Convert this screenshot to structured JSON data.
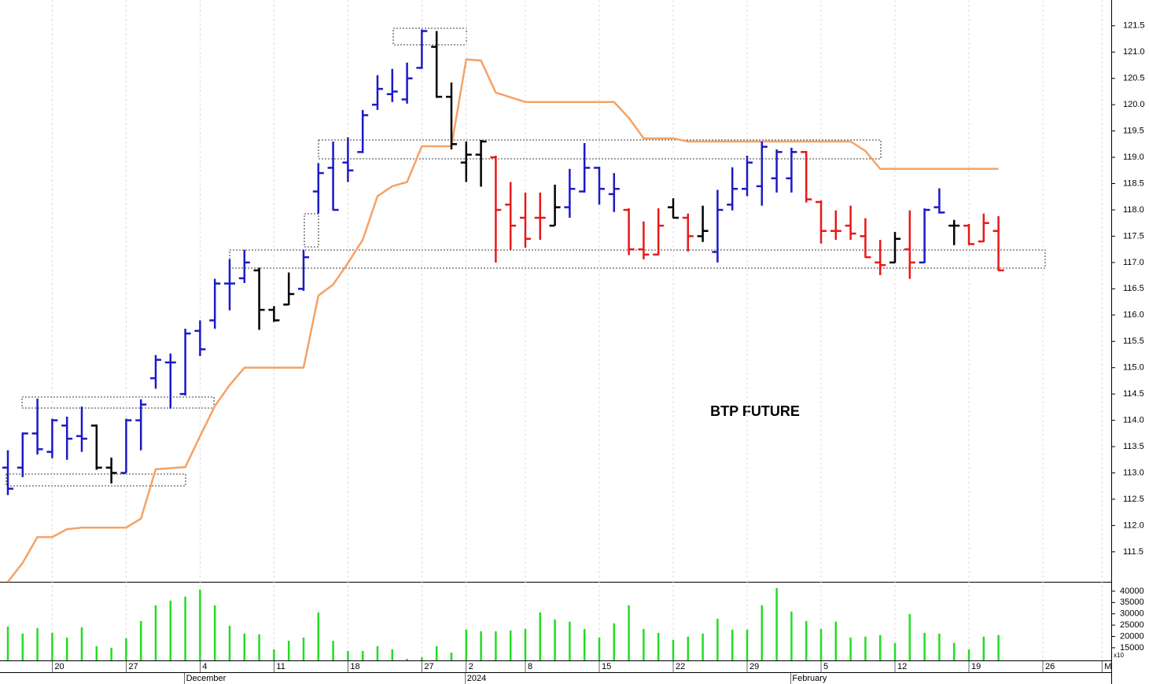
{
  "chart_data": [
    {
      "type": "ohlc",
      "annotation": "BTP FUTURE",
      "categories": [
        null,
        null,
        null,
        "20",
        null,
        null,
        null,
        null,
        "27",
        null,
        null,
        null,
        null,
        "4",
        null,
        null,
        null,
        null,
        "11",
        null,
        null,
        null,
        null,
        "18",
        null,
        null,
        null,
        null,
        "27",
        null,
        null,
        "2",
        null,
        null,
        null,
        "8",
        null,
        null,
        null,
        null,
        "15",
        null,
        null,
        null,
        null,
        "22",
        null,
        null,
        null,
        null,
        "29",
        null,
        null,
        null,
        null,
        "5",
        null,
        null,
        null,
        null,
        "12",
        null,
        null,
        null,
        null,
        "19",
        null,
        null,
        null,
        null,
        "26",
        null,
        null,
        null,
        "M"
      ],
      "month_labels": [
        null,
        null,
        null,
        null,
        null,
        null,
        null,
        null,
        null,
        null,
        null,
        null,
        "December",
        null,
        null,
        null,
        null,
        null,
        null,
        null,
        null,
        null,
        null,
        null,
        null,
        null,
        null,
        null,
        null,
        null,
        null,
        "2024",
        null,
        null,
        null,
        null,
        null,
        null,
        null,
        null,
        null,
        null,
        null,
        null,
        null,
        null,
        null,
        null,
        null,
        null,
        null,
        null,
        null,
        "February",
        null,
        null,
        null,
        null,
        null,
        null,
        null,
        null,
        null,
        null,
        null,
        null,
        null,
        null,
        null,
        null,
        null,
        null,
        null,
        null,
        null
      ],
      "open": [
        113.1,
        113.1,
        113.75,
        113.4,
        113.9,
        113.7,
        113.9,
        113.1,
        113.0,
        114.0,
        114.8,
        115.1,
        114.5,
        115.7,
        115.9,
        116.6,
        116.7,
        116.85,
        116.1,
        116.2,
        116.5,
        118.35,
        118.8,
        118.9,
        119.1,
        120.0,
        120.2,
        120.1,
        120.7,
        121.1,
        120.15,
        118.9,
        119.05,
        119.0,
        118.1,
        117.85,
        117.85,
        117.7,
        118.05,
        118.35,
        118.8,
        118.3,
        118.0,
        117.25,
        117.15,
        118.05,
        117.85,
        117.5,
        117.2,
        118.1,
        118.4,
        118.45,
        118.6,
        118.6,
        119.1,
        118.15,
        117.6,
        117.7,
        117.5,
        117.0,
        117.0,
        117.25,
        117.0,
        118.05,
        117.7,
        117.7,
        117.4,
        117.6,
        null,
        null,
        null,
        null,
        null,
        null,
        null
      ],
      "high": [
        113.43,
        113.77,
        114.41,
        114.03,
        114.07,
        114.26,
        113.92,
        113.29,
        114.03,
        114.4,
        115.24,
        115.27,
        115.74,
        115.9,
        116.69,
        117.06,
        117.24,
        116.9,
        116.17,
        116.81,
        117.24,
        118.89,
        119.3,
        119.38,
        119.9,
        120.56,
        120.68,
        120.8,
        121.43,
        121.4,
        120.42,
        119.3,
        119.33,
        119.03,
        118.53,
        118.33,
        118.33,
        118.48,
        118.78,
        119.27,
        118.82,
        118.7,
        118.03,
        117.78,
        118.03,
        118.22,
        117.93,
        118.08,
        118.38,
        118.81,
        119.03,
        119.3,
        119.15,
        119.18,
        119.12,
        118.18,
        117.99,
        118.08,
        117.84,
        117.43,
        117.58,
        117.99,
        118.03,
        118.41,
        117.81,
        117.73,
        117.93,
        117.88,
        null,
        null,
        null,
        null,
        null,
        null,
        null
      ],
      "low": [
        112.58,
        112.92,
        113.35,
        113.28,
        113.25,
        113.4,
        113.06,
        112.8,
        113.0,
        113.43,
        114.6,
        114.22,
        114.47,
        115.22,
        115.74,
        116.09,
        116.61,
        115.72,
        115.87,
        116.19,
        116.46,
        117.93,
        117.99,
        118.53,
        119.08,
        119.9,
        120.05,
        120.02,
        120.68,
        120.13,
        119.15,
        118.53,
        118.44,
        117.0,
        117.24,
        117.28,
        117.43,
        117.7,
        117.85,
        118.33,
        118.1,
        117.96,
        117.14,
        117.06,
        117.14,
        117.84,
        117.21,
        117.39,
        117.0,
        117.99,
        118.26,
        118.08,
        118.33,
        118.33,
        118.14,
        117.36,
        117.43,
        117.43,
        117.09,
        116.76,
        116.99,
        116.69,
        116.99,
        117.93,
        117.33,
        117.33,
        117.39,
        116.84,
        null,
        null,
        null,
        null,
        null,
        null,
        null
      ],
      "close": [
        112.7,
        113.75,
        113.45,
        114.0,
        113.65,
        113.65,
        113.1,
        113.0,
        114.0,
        114.3,
        115.15,
        115.1,
        115.65,
        115.35,
        116.6,
        116.6,
        117.0,
        116.1,
        115.9,
        116.4,
        117.1,
        118.7,
        118.0,
        118.75,
        119.8,
        120.3,
        120.25,
        120.5,
        121.4,
        120.15,
        119.25,
        119.05,
        119.3,
        118.0,
        117.7,
        117.45,
        117.85,
        118.05,
        118.4,
        118.8,
        118.4,
        118.4,
        117.25,
        117.15,
        117.7,
        117.85,
        117.5,
        117.6,
        118.0,
        118.4,
        118.9,
        119.2,
        119.1,
        119.1,
        118.2,
        117.6,
        117.6,
        117.55,
        117.1,
        116.95,
        117.45,
        117.0,
        118.0,
        117.95,
        117.7,
        117.35,
        117.75,
        116.85,
        null,
        null,
        null,
        null,
        null,
        null,
        null
      ],
      "bar_colors": [
        "#1a1ac8",
        "#1a1ac8",
        "#1a1ac8",
        "#1a1ac8",
        "#1a1ac8",
        "#1a1ac8",
        "#000000",
        "#000000",
        "#1a1ac8",
        "#1a1ac8",
        "#1a1ac8",
        "#1a1ac8",
        "#1a1ac8",
        "#1a1ac8",
        "#1a1ac8",
        "#1a1ac8",
        "#1a1ac8",
        "#000000",
        "#000000",
        "#000000",
        "#1a1ac8",
        "#1a1ac8",
        "#1a1ac8",
        "#1a1ac8",
        "#1a1ac8",
        "#1a1ac8",
        "#1a1ac8",
        "#1a1ac8",
        "#1a1ac8",
        "#000000",
        "#000000",
        "#000000",
        "#000000",
        "#e81818",
        "#e81818",
        "#e81818",
        "#e81818",
        "#000000",
        "#1a1ac8",
        "#1a1ac8",
        "#1a1ac8",
        "#1a1ac8",
        "#e81818",
        "#e81818",
        "#e81818",
        "#000000",
        "#e81818",
        "#000000",
        "#1a1ac8",
        "#1a1ac8",
        "#1a1ac8",
        "#1a1ac8",
        "#1a1ac8",
        "#1a1ac8",
        "#e81818",
        "#e81818",
        "#e81818",
        "#e81818",
        "#e81818",
        "#e81818",
        "#000000",
        "#e81818",
        "#1a1ac8",
        "#1a1ac8",
        "#000000",
        "#e81818",
        "#e81818",
        "#e81818",
        null,
        null,
        null,
        null,
        null,
        null,
        null
      ],
      "stop": {
        "color": "#f5a266",
        "values": [
          110.93,
          111.29,
          111.78,
          111.78,
          111.93,
          111.96,
          111.96,
          111.96,
          111.96,
          112.13,
          113.07,
          113.09,
          113.11,
          113.7,
          114.27,
          114.67,
          115.0,
          115.0,
          115.0,
          115.0,
          115.0,
          116.37,
          116.58,
          116.99,
          117.43,
          118.26,
          118.45,
          118.53,
          119.21,
          119.21,
          119.21,
          120.86,
          120.84,
          120.23,
          120.14,
          120.05,
          120.05,
          120.05,
          120.05,
          120.05,
          120.05,
          120.05,
          119.75,
          119.36,
          119.36,
          119.36,
          119.3,
          119.3,
          119.3,
          119.3,
          119.3,
          119.3,
          119.3,
          119.3,
          119.3,
          119.3,
          119.3,
          119.3,
          119.12,
          118.78,
          118.78,
          118.78,
          118.78,
          118.78,
          118.78,
          118.78,
          118.78,
          118.78,
          null,
          null,
          null,
          null,
          null,
          null,
          null
        ]
      },
      "ylim": [
        110.93,
        121.99
      ],
      "yticks": [
        {
          "value": 111.5,
          "label": "111.5"
        },
        {
          "value": 112,
          "label": "112.0"
        },
        112.5,
        {
          "value": 113,
          "label": "113.0"
        },
        113.5,
        {
          "value": 114,
          "label": "114.0"
        },
        114.5,
        {
          "value": 115,
          "label": "115.0"
        },
        115.5,
        {
          "value": 116,
          "label": "116.0"
        },
        116.5,
        {
          "value": 117,
          "label": "117.0"
        },
        117.5,
        {
          "value": 118,
          "label": "118.0"
        },
        118.5,
        {
          "value": 119,
          "label": "119.0"
        },
        119.5,
        {
          "value": 120,
          "label": "120.0"
        },
        120.5,
        {
          "value": 121,
          "label": "121.0"
        },
        121.5
      ],
      "grid": "x"
    },
    {
      "type": "bar",
      "color": "#22dd22",
      "unit_label": "x10",
      "values": [
        24400,
        21250,
        23700,
        21600,
        19500,
        24000,
        15700,
        15000,
        19200,
        26800,
        33750,
        35800,
        37600,
        40700,
        33750,
        24700,
        21250,
        20900,
        14300,
        18100,
        19500,
        30600,
        18100,
        13600,
        13600,
        15700,
        14300,
        10100,
        10800,
        15700,
        12900,
        23000,
        22300,
        22300,
        22600,
        23300,
        30600,
        27500,
        26500,
        23300,
        19500,
        25800,
        33750,
        23300,
        21600,
        18500,
        19900,
        21250,
        27800,
        23000,
        23000,
        33750,
        41400,
        31000,
        26800,
        23300,
        26500,
        19500,
        19900,
        20600,
        17100,
        29900,
        21600,
        21250,
        17100,
        14300,
        19900,
        20600,
        null,
        null,
        null,
        null,
        null,
        null,
        null
      ],
      "ylim": [
        9400,
        43800
      ],
      "yticks": [
        15000,
        20000,
        25000,
        30000,
        35000,
        40000
      ]
    }
  ]
}
